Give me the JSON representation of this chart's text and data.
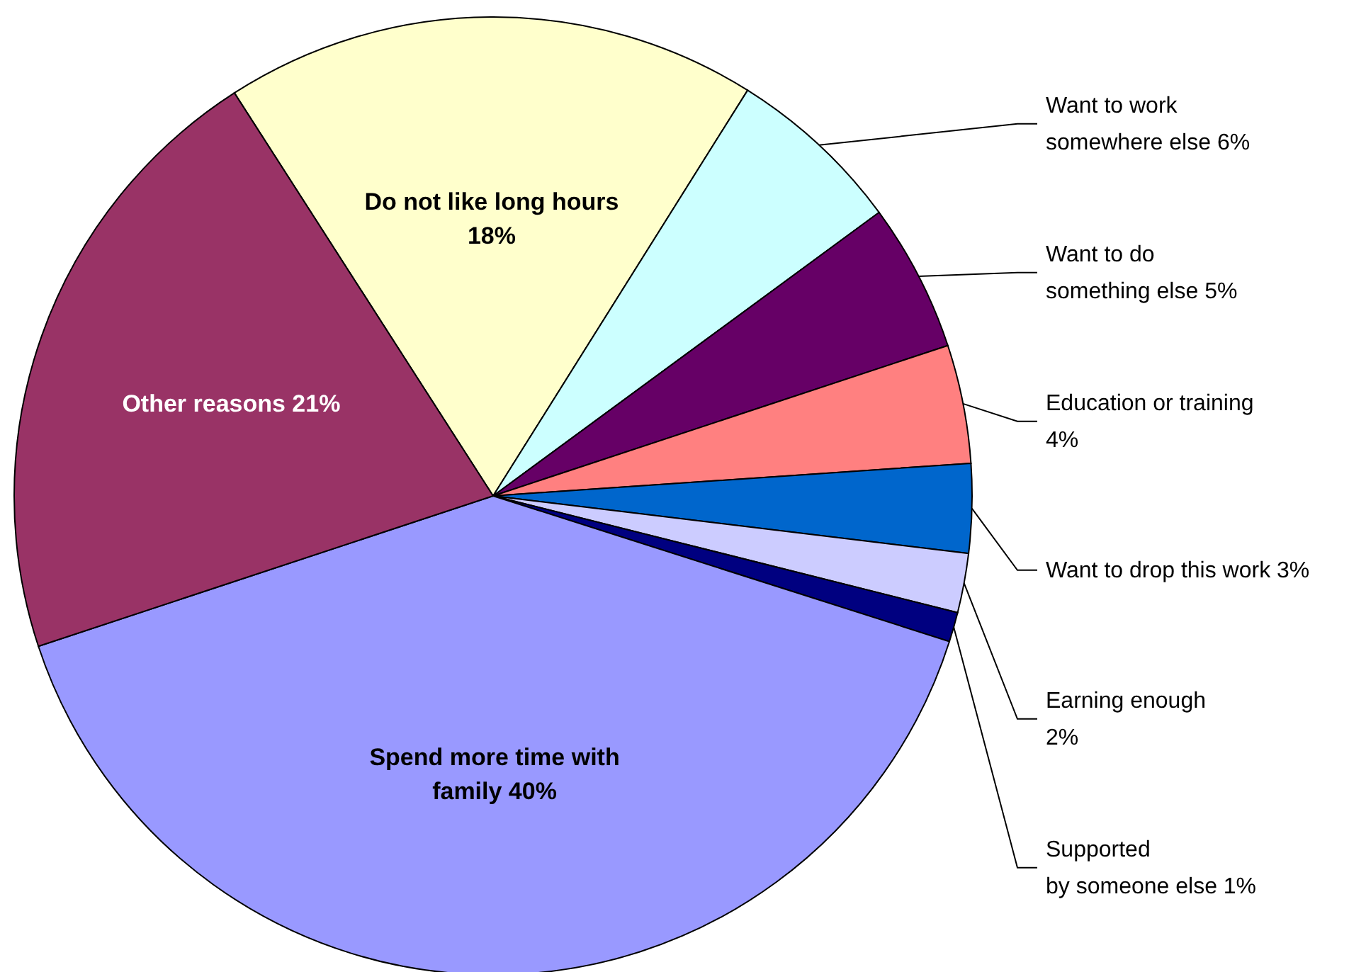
{
  "chart_data": {
    "type": "pie",
    "categories": [
      "Do not like long hours",
      "Want to work somewhere else",
      "Want to do something else",
      "Education or training",
      "Want to drop this work",
      "Earning enough",
      "Supported by someone else",
      "Spend more time with family",
      "Other reasons"
    ],
    "values": [
      18,
      6,
      5,
      4,
      3,
      2,
      1,
      40,
      21
    ],
    "value_labels": [
      "18%",
      "6%",
      "5%",
      "4%",
      "3%",
      "2%",
      "1%",
      "40%",
      "21%"
    ],
    "colors": [
      "#ffffcc",
      "#ccffff",
      "#660066",
      "#ff8080",
      "#0066cc",
      "#ccccff",
      "#000080",
      "#9999ff",
      "#993366"
    ],
    "legend": false
  }
}
